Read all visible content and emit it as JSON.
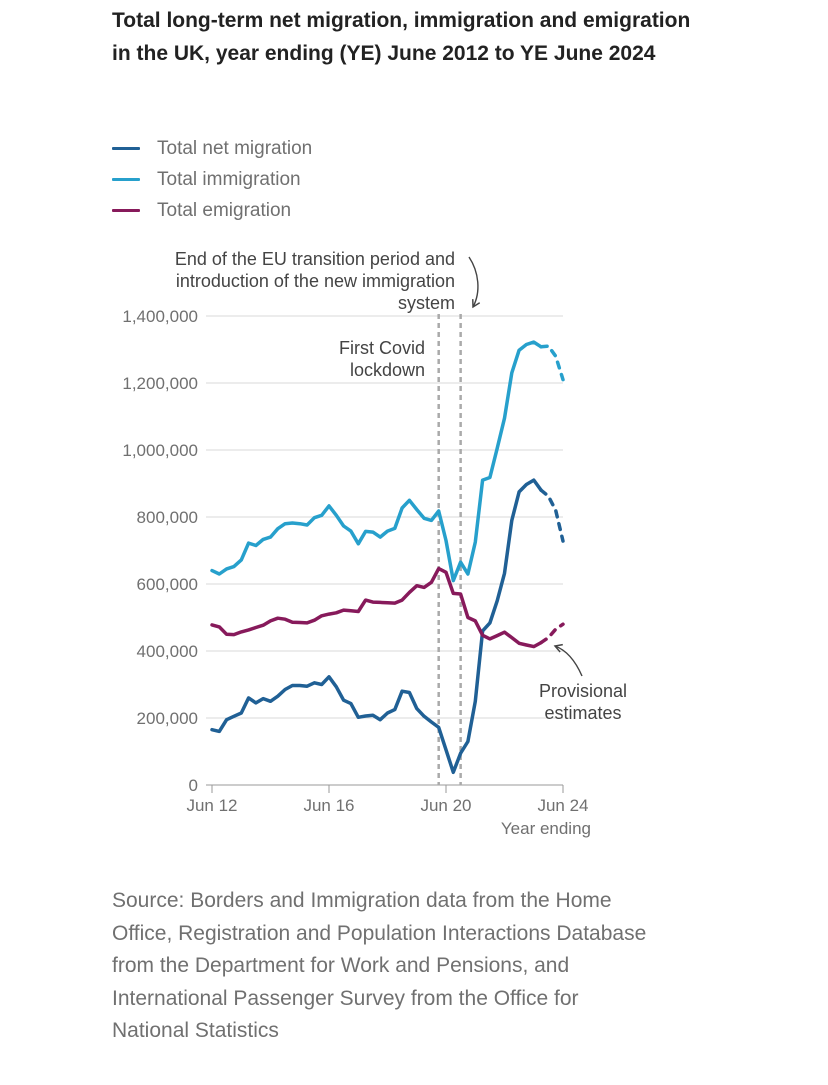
{
  "title": "Total long-term net migration, immigration and emigration in the UK, year ending (YE) June 2012 to YE June 2024",
  "source": "Source: Borders and Immigration data from the Home Office, Registration and Population Interactions Database from the Department for Work and Pensions, and International Passenger Survey from the Office for National Statistics",
  "chart_data": {
    "type": "line",
    "title": "Total long-term net migration, immigration and emigration in the UK, year ending (YE) June 2012 to YE June 2024",
    "xlabel": "Year ending",
    "ylabel": "",
    "x_start": "Jun 2012",
    "x_step": "quarter",
    "x_ticks": [
      {
        "label": "Jun 12",
        "x": 2012.5
      },
      {
        "label": "Jun 16",
        "x": 2016.5
      },
      {
        "label": "Jun 20",
        "x": 2020.5
      },
      {
        "label": "Jun 24",
        "x": 2024.5
      }
    ],
    "ylim": [
      0,
      1400000
    ],
    "y_ticks": [
      {
        "value": 0,
        "label": "0"
      },
      {
        "value": 200000,
        "label": "200,000"
      },
      {
        "value": 400000,
        "label": "400,000"
      },
      {
        "value": 600000,
        "label": "600,000"
      },
      {
        "value": 800000,
        "label": "800,000"
      },
      {
        "value": 1000000,
        "label": "1,000,000"
      },
      {
        "value": 1200000,
        "label": "1,200,000"
      },
      {
        "value": 1400000,
        "label": "1,400,000"
      }
    ],
    "grid": "horizontal",
    "legend_position": "top-left",
    "provisional_from": "Dec 2023",
    "series": [
      {
        "name": "Total net migration",
        "color": "#206095",
        "values": [
          165000,
          160000,
          195000,
          205000,
          215000,
          260000,
          245000,
          258000,
          250000,
          265000,
          285000,
          297000,
          297000,
          295000,
          305000,
          300000,
          323000,
          293000,
          253000,
          243000,
          202000,
          206000,
          208000,
          195000,
          215000,
          225000,
          280000,
          276000,
          228000,
          205000,
          188000,
          172000,
          105000,
          38000,
          95000,
          130000,
          250000,
          460000,
          484000,
          550000,
          632000,
          790000,
          875000,
          897000,
          910000,
          880000,
          862000,
          820000,
          728000
        ]
      },
      {
        "name": "Total immigration",
        "color": "#27A0CC",
        "values": [
          640000,
          630000,
          645000,
          652000,
          672000,
          722000,
          715000,
          733000,
          740000,
          765000,
          780000,
          782000,
          780000,
          776000,
          798000,
          805000,
          833000,
          805000,
          773000,
          758000,
          720000,
          757000,
          755000,
          740000,
          758000,
          766000,
          827000,
          850000,
          822000,
          796000,
          790000,
          818000,
          730000,
          610000,
          665000,
          630000,
          725000,
          910000,
          918000,
          1005000,
          1095000,
          1230000,
          1298000,
          1315000,
          1322000,
          1308000,
          1310000,
          1280000,
          1210000
        ]
      },
      {
        "name": "Total emigration",
        "color": "#871A5B",
        "values": [
          478000,
          472000,
          450000,
          449000,
          457000,
          463000,
          470000,
          477000,
          490000,
          498000,
          495000,
          486000,
          485000,
          484000,
          492000,
          505000,
          510000,
          514000,
          522000,
          520000,
          518000,
          552000,
          546000,
          545000,
          544000,
          543000,
          552000,
          575000,
          595000,
          590000,
          605000,
          646000,
          635000,
          572000,
          570000,
          500000,
          490000,
          447000,
          436000,
          446000,
          456000,
          440000,
          423000,
          418000,
          413000,
          425000,
          440000,
          465000,
          480000
        ]
      }
    ],
    "annotations": [
      {
        "label": "First Covid lockdown",
        "at": "Mar 2020"
      },
      {
        "label": "End of the EU transition period and introduction of the new immigration system",
        "at": "Dec 2020"
      },
      {
        "label": "Provisional estimates"
      }
    ]
  },
  "annotation_lines": {
    "covid": [
      "First Covid",
      "lockdown"
    ],
    "eu": [
      "End of the EU transition period and",
      "introduction of the new immigration",
      "system"
    ],
    "provisional": [
      "Provisional",
      "estimates"
    ]
  }
}
